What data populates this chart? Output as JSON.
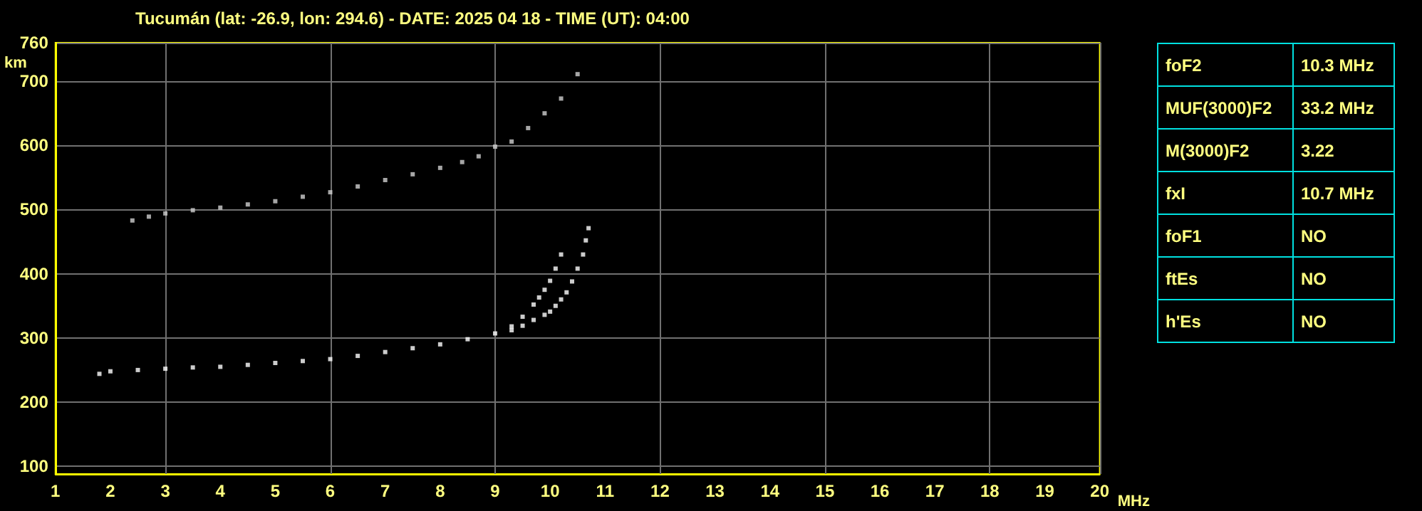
{
  "chart_data": [
    {
      "type": "scatter",
      "title": "Tucumán (lat: -26.9, lon: 294.6) - DATE: 2025 04 18 - TIME (UT): 04:00",
      "xlabel": "MHz",
      "ylabel": "km",
      "xlim": [
        1,
        20
      ],
      "xticks": [
        1,
        2,
        3,
        4,
        5,
        6,
        7,
        8,
        9,
        10,
        11,
        12,
        13,
        14,
        15,
        16,
        17,
        18,
        19,
        20
      ],
      "ylim": [
        88,
        760
      ],
      "yticks": [
        100,
        200,
        300,
        400,
        500,
        600,
        700,
        760
      ],
      "grid": true,
      "marker": "square",
      "series": [
        {
          "color": "#ffffff",
          "x": [
            1.8,
            2,
            2.5,
            3,
            3.5,
            4,
            4.5,
            5,
            5.5,
            6,
            6.5,
            7,
            7.5,
            8,
            8.5,
            9,
            9.3,
            9.5,
            9.7,
            9.8,
            9.9,
            10.0,
            10.1,
            10.2
          ],
          "values": [
            244,
            248,
            250,
            252,
            254,
            255,
            258,
            261,
            264,
            267,
            272,
            278,
            284,
            290,
            298,
            307,
            318,
            333,
            352,
            363,
            375,
            389,
            408,
            430
          ]
        },
        {
          "color": "#ffffff",
          "x": [
            9.3,
            9.5,
            9.7,
            9.9,
            10.0,
            10.1,
            10.2,
            10.3,
            10.4,
            10.5,
            10.6,
            10.65,
            10.7
          ],
          "values": [
            312,
            319,
            328,
            336,
            341,
            350,
            360,
            371,
            388,
            408,
            430,
            452,
            471
          ]
        },
        {
          "color": "#d0d0d0",
          "x": [
            2.4,
            2.7,
            3,
            3.5,
            4,
            4.5,
            5,
            5.5,
            6,
            6.5,
            7,
            7.5,
            8,
            8.4,
            8.7,
            9.0,
            9.3,
            9.6,
            9.9,
            10.2,
            10.5
          ],
          "values": [
            483,
            489,
            494,
            499,
            503,
            508,
            513,
            520,
            527,
            536,
            546,
            555,
            565,
            574,
            583,
            598,
            606,
            627,
            650,
            673,
            711
          ]
        }
      ]
    },
    {
      "type": "other",
      "annotations": [
        "foF2",
        "10.3 MHz",
        "MUF(3000)F2",
        "33.2 MHz",
        "M(3000)F2",
        "3.22",
        "fxI",
        "10.7 MHz",
        "foF1",
        "NO",
        "ftEs",
        "NO",
        "h'Es",
        "NO"
      ]
    }
  ]
}
